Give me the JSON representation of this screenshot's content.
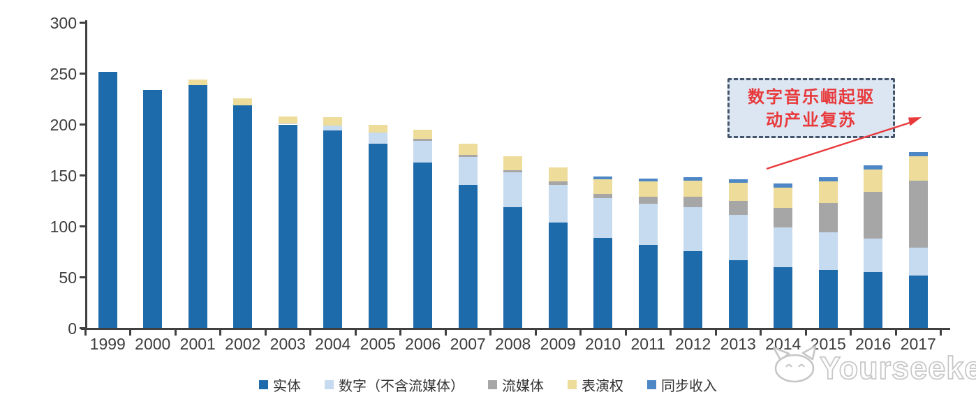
{
  "chart_data": {
    "type": "bar",
    "stacked": true,
    "title": "",
    "categories": [
      "1999",
      "2000",
      "2001",
      "2002",
      "2003",
      "2004",
      "2005",
      "2006",
      "2007",
      "2008",
      "2009",
      "2010",
      "2011",
      "2012",
      "2013",
      "2014",
      "2015",
      "2016",
      "2017"
    ],
    "series": [
      {
        "name": "实体",
        "color": "#1e6bab",
        "values": [
          252,
          234,
          239,
          219,
          200,
          194,
          181,
          163,
          141,
          119,
          104,
          89,
          82,
          76,
          67,
          60,
          57,
          55,
          52
        ]
      },
      {
        "name": "数字（不含流媒体）",
        "color": "#c6daf0",
        "values": [
          0,
          0,
          0,
          0,
          1,
          5,
          11,
          21,
          27,
          34,
          37,
          39,
          40,
          43,
          44,
          39,
          37,
          33,
          27
        ]
      },
      {
        "name": "流媒体",
        "color": "#a6a6a6",
        "values": [
          0,
          0,
          0,
          0,
          0,
          0,
          0,
          2,
          2,
          2,
          3,
          4,
          7,
          10,
          14,
          19,
          29,
          46,
          66
        ]
      },
      {
        "name": "表演权",
        "color": "#eedc9b",
        "values": [
          0,
          0,
          5,
          7,
          7,
          8,
          8,
          9,
          11,
          14,
          14,
          14,
          15,
          16,
          18,
          20,
          21,
          22,
          24
        ]
      },
      {
        "name": "同步收入",
        "color": "#4e87c6",
        "values": [
          0,
          0,
          0,
          0,
          0,
          0,
          0,
          0,
          0,
          0,
          0,
          3,
          3,
          3,
          3,
          4,
          4,
          4,
          4
        ]
      }
    ],
    "ylim": [
      0,
      300
    ],
    "yticks": [
      0,
      50,
      100,
      150,
      200,
      250,
      300
    ],
    "grid": false,
    "legend_position": "bottom"
  },
  "annotation": {
    "line1": "数字音乐崛起驱",
    "line2": "动产业复苏",
    "full_text": "数字音乐崛起驱动产业复苏"
  },
  "watermark": {
    "text": "Yourseeker"
  },
  "colors": {
    "axis": "#404040",
    "tick_label": "#3d3d3d",
    "annotation_text": "#e8393b",
    "annotation_border": "#44546a",
    "annotation_fill": "#dce6f3",
    "arrow": "#e8393b",
    "watermark_outline": "#c6c6c6"
  }
}
